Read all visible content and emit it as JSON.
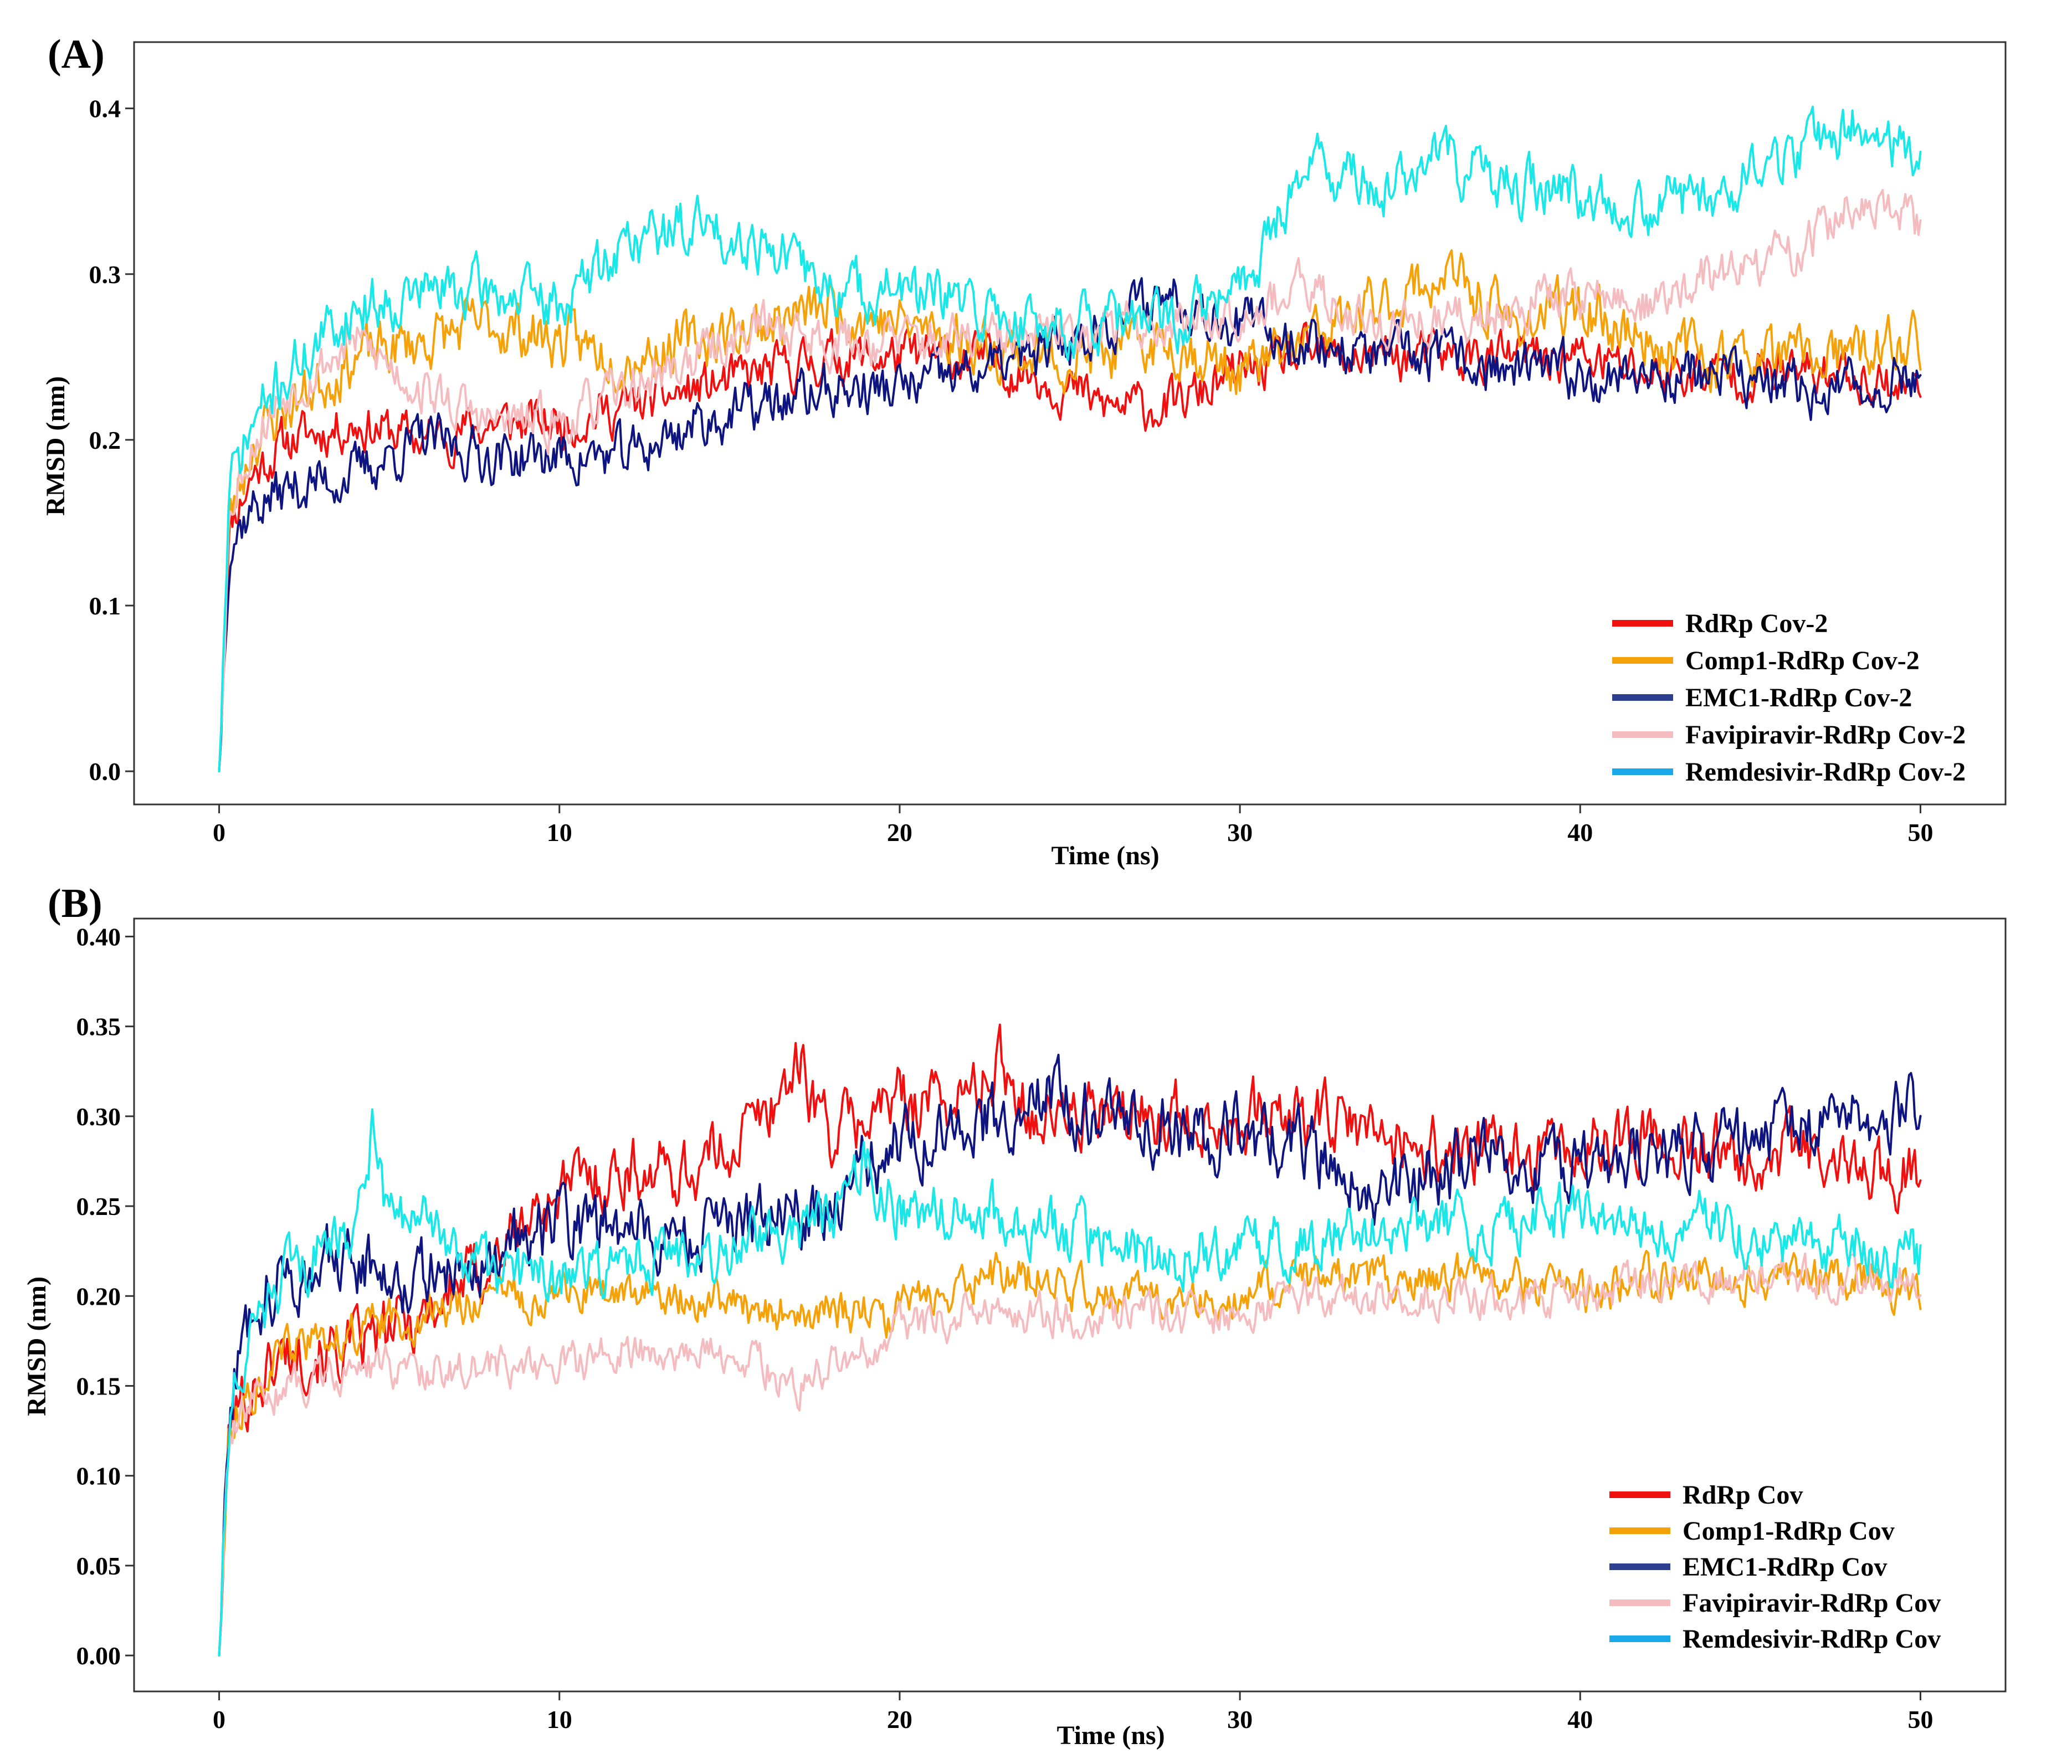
{
  "figure": {
    "colors": {
      "red": "#f01010",
      "orange": "#f5a20a",
      "navy": "#0f1580",
      "pink": "#f5bcc0",
      "cyan": "#1ae8e8",
      "legend_navy": "#2a3f8f",
      "legend_cyan": "#1aa8e8"
    }
  },
  "chart_data": [
    {
      "panel_label": "(A)",
      "type": "line",
      "title": "",
      "xlabel": "Time (ns)",
      "ylabel": "RMSD (nm)",
      "xlim": [
        -2.5,
        52.5
      ],
      "ylim": [
        -0.02,
        0.44
      ],
      "x_ticks": [
        0,
        10,
        20,
        30,
        40,
        50
      ],
      "x_tick_labels": [
        "0",
        "10",
        "20",
        "30",
        "40",
        "50"
      ],
      "y_ticks": [
        0.0,
        0.1,
        0.2,
        0.3,
        0.4
      ],
      "y_tick_labels": [
        "0.0",
        "0.1",
        "0.2",
        "0.3",
        "0.4"
      ],
      "legend_position": "bottom-right",
      "series": [
        {
          "name": "RdRp Cov-2",
          "color": "#f01010",
          "legend_color": "#f01010",
          "seed": 11,
          "x": [
            0,
            0.3,
            1,
            2,
            4,
            6,
            8,
            10,
            12,
            14,
            16,
            18,
            20,
            22,
            24,
            26,
            28,
            30,
            32,
            34,
            36,
            38,
            40,
            42,
            44,
            46,
            48,
            50
          ],
          "y": [
            0.0,
            0.15,
            0.18,
            0.2,
            0.21,
            0.2,
            0.21,
            0.21,
            0.22,
            0.23,
            0.24,
            0.25,
            0.25,
            0.25,
            0.24,
            0.22,
            0.22,
            0.24,
            0.25,
            0.25,
            0.25,
            0.25,
            0.25,
            0.24,
            0.24,
            0.24,
            0.24,
            0.23
          ],
          "noise": 0.012
        },
        {
          "name": "Comp1-RdRp Cov-2",
          "color": "#f5a20a",
          "legend_color": "#f5a20a",
          "seed": 23,
          "x": [
            0,
            0.3,
            1,
            2,
            4,
            6,
            8,
            10,
            12,
            14,
            16,
            18,
            20,
            22,
            24,
            26,
            28,
            30,
            32,
            34,
            36,
            38,
            40,
            42,
            44,
            46,
            48,
            50
          ],
          "y": [
            0.0,
            0.15,
            0.2,
            0.22,
            0.25,
            0.26,
            0.27,
            0.26,
            0.25,
            0.26,
            0.27,
            0.28,
            0.27,
            0.26,
            0.25,
            0.25,
            0.26,
            0.24,
            0.26,
            0.28,
            0.3,
            0.27,
            0.28,
            0.26,
            0.25,
            0.25,
            0.25,
            0.26
          ],
          "noise": 0.014
        },
        {
          "name": "EMC1-RdRp Cov-2",
          "color": "#0f1580",
          "legend_color": "#2a3f8f",
          "seed": 37,
          "x": [
            0,
            0.3,
            1,
            2,
            4,
            6,
            8,
            10,
            12,
            14,
            16,
            18,
            20,
            22,
            24,
            26,
            28,
            30,
            32,
            34,
            36,
            38,
            40,
            42,
            44,
            46,
            48,
            50
          ],
          "y": [
            0.0,
            0.14,
            0.16,
            0.17,
            0.18,
            0.2,
            0.19,
            0.19,
            0.19,
            0.21,
            0.22,
            0.23,
            0.23,
            0.24,
            0.25,
            0.27,
            0.29,
            0.27,
            0.26,
            0.25,
            0.25,
            0.24,
            0.24,
            0.24,
            0.24,
            0.23,
            0.23,
            0.24
          ],
          "noise": 0.013
        },
        {
          "name": "Favipiravir-RdRp Cov-2",
          "color": "#f5bcc0",
          "legend_color": "#f5bcc0",
          "seed": 53,
          "x": [
            0,
            0.3,
            1,
            2,
            4,
            6,
            8,
            10,
            12,
            14,
            16,
            18,
            20,
            22,
            24,
            26,
            28,
            30,
            32,
            34,
            36,
            38,
            40,
            42,
            44,
            46,
            48,
            50
          ],
          "y": [
            0.0,
            0.16,
            0.2,
            0.23,
            0.26,
            0.23,
            0.21,
            0.21,
            0.23,
            0.25,
            0.27,
            0.26,
            0.26,
            0.26,
            0.26,
            0.27,
            0.27,
            0.28,
            0.29,
            0.27,
            0.27,
            0.28,
            0.29,
            0.28,
            0.3,
            0.31,
            0.34,
            0.33
          ],
          "noise": 0.012
        },
        {
          "name": "Remdesivir-RdRp Cov-2",
          "color": "#1ae8e8",
          "legend_color": "#1aa8e8",
          "seed": 71,
          "x": [
            0,
            0.3,
            1,
            2,
            4,
            6,
            8,
            10,
            12,
            14,
            16,
            18,
            20,
            22,
            24,
            26,
            28,
            30,
            32,
            34,
            36,
            38,
            40,
            42,
            44,
            46,
            48,
            50
          ],
          "y": [
            0.0,
            0.17,
            0.21,
            0.24,
            0.28,
            0.29,
            0.29,
            0.28,
            0.32,
            0.33,
            0.32,
            0.29,
            0.29,
            0.28,
            0.27,
            0.27,
            0.27,
            0.29,
            0.37,
            0.35,
            0.37,
            0.35,
            0.35,
            0.34,
            0.35,
            0.37,
            0.39,
            0.37
          ],
          "noise": 0.014
        }
      ]
    },
    {
      "panel_label": "(B)",
      "type": "line",
      "title": "",
      "xlabel": "Time (ns)",
      "ylabel": "RMSD (nm)",
      "xlim": [
        -2.5,
        52.5
      ],
      "ylim": [
        -0.02,
        0.41
      ],
      "x_ticks": [
        0,
        10,
        20,
        30,
        40,
        50
      ],
      "x_tick_labels": [
        "0",
        "10",
        "20",
        "30",
        "40",
        "50"
      ],
      "y_ticks": [
        0.0,
        0.05,
        0.1,
        0.15,
        0.2,
        0.25,
        0.3,
        0.35,
        0.4
      ],
      "y_tick_labels": [
        "0.00",
        "0.05",
        "0.10",
        "0.15",
        "0.20",
        "0.25",
        "0.30",
        "0.35",
        "0.40"
      ],
      "legend_position": "bottom-right",
      "series": [
        {
          "name": "RdRp Cov",
          "color": "#f01010",
          "legend_color": "#f01010",
          "seed": 101,
          "x": [
            0,
            0.3,
            1,
            2,
            4,
            6,
            8,
            10,
            12,
            14,
            16,
            17,
            18,
            20,
            22,
            23,
            24,
            26,
            28,
            30,
            32,
            34,
            36,
            38,
            40,
            42,
            44,
            46,
            48,
            50
          ],
          "y": [
            0.0,
            0.13,
            0.15,
            0.17,
            0.17,
            0.19,
            0.22,
            0.26,
            0.27,
            0.27,
            0.3,
            0.33,
            0.29,
            0.31,
            0.31,
            0.33,
            0.3,
            0.3,
            0.3,
            0.3,
            0.3,
            0.29,
            0.28,
            0.28,
            0.28,
            0.29,
            0.28,
            0.28,
            0.27,
            0.27
          ],
          "noise": 0.015
        },
        {
          "name": "Comp1-RdRp Cov",
          "color": "#f5a20a",
          "legend_color": "#f5a20a",
          "seed": 113,
          "x": [
            0,
            0.3,
            1,
            2,
            4,
            6,
            8,
            10,
            12,
            14,
            16,
            18,
            20,
            22,
            24,
            26,
            28,
            30,
            32,
            34,
            36,
            38,
            40,
            42,
            44,
            46,
            48,
            50
          ],
          "y": [
            0.0,
            0.13,
            0.15,
            0.17,
            0.18,
            0.19,
            0.2,
            0.2,
            0.2,
            0.2,
            0.19,
            0.19,
            0.19,
            0.21,
            0.21,
            0.2,
            0.2,
            0.2,
            0.21,
            0.21,
            0.21,
            0.21,
            0.2,
            0.21,
            0.21,
            0.21,
            0.21,
            0.2
          ],
          "noise": 0.01
        },
        {
          "name": "EMC1-RdRp Cov",
          "color": "#0f1580",
          "legend_color": "#2a3f8f",
          "seed": 127,
          "x": [
            0,
            0.3,
            1,
            2,
            4,
            6,
            8,
            10,
            12,
            14,
            16,
            18,
            20,
            22,
            24,
            26,
            28,
            30,
            32,
            34,
            36,
            38,
            40,
            42,
            44,
            46,
            48,
            50
          ],
          "y": [
            0.0,
            0.14,
            0.2,
            0.21,
            0.22,
            0.21,
            0.22,
            0.24,
            0.24,
            0.23,
            0.24,
            0.25,
            0.29,
            0.29,
            0.31,
            0.3,
            0.29,
            0.29,
            0.28,
            0.26,
            0.27,
            0.28,
            0.27,
            0.28,
            0.28,
            0.29,
            0.3,
            0.3
          ],
          "noise": 0.016
        },
        {
          "name": "Favipiravir-RdRp Cov",
          "color": "#f5bcc0",
          "legend_color": "#f5bcc0",
          "seed": 139,
          "x": [
            0,
            0.3,
            1,
            2,
            4,
            6,
            8,
            10,
            12,
            14,
            16,
            17,
            18,
            20,
            22,
            24,
            26,
            28,
            30,
            32,
            34,
            36,
            38,
            40,
            42,
            44,
            46,
            48,
            50
          ],
          "y": [
            0.0,
            0.12,
            0.14,
            0.15,
            0.16,
            0.16,
            0.16,
            0.16,
            0.17,
            0.17,
            0.16,
            0.15,
            0.16,
            0.18,
            0.19,
            0.19,
            0.19,
            0.19,
            0.19,
            0.2,
            0.2,
            0.2,
            0.2,
            0.2,
            0.21,
            0.21,
            0.21,
            0.21,
            0.21
          ],
          "noise": 0.009
        },
        {
          "name": "Remdesivir-RdRp Cov",
          "color": "#1ae8e8",
          "legend_color": "#1aa8e8",
          "seed": 151,
          "x": [
            0,
            0.3,
            1,
            2,
            4,
            4.5,
            5,
            6,
            8,
            10,
            12,
            14,
            16,
            18,
            19,
            20,
            22,
            24,
            26,
            28,
            30,
            32,
            34,
            36,
            38,
            40,
            42,
            44,
            46,
            48,
            50
          ],
          "y": [
            0.0,
            0.14,
            0.18,
            0.21,
            0.24,
            0.29,
            0.24,
            0.24,
            0.21,
            0.21,
            0.22,
            0.22,
            0.23,
            0.24,
            0.27,
            0.25,
            0.25,
            0.24,
            0.23,
            0.22,
            0.23,
            0.23,
            0.24,
            0.24,
            0.24,
            0.25,
            0.24,
            0.24,
            0.23,
            0.23,
            0.22
          ],
          "noise": 0.013
        }
      ]
    }
  ]
}
